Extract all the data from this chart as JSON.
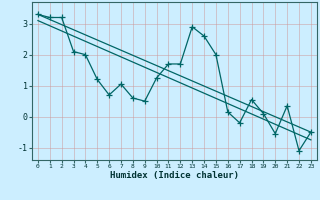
{
  "title": "",
  "xlabel": "Humidex (Indice chaleur)",
  "background_color": "#cceeff",
  "grid_color": "#aaddcc",
  "line_color": "#006666",
  "xlim": [
    -0.5,
    23.5
  ],
  "ylim": [
    -1.4,
    3.7
  ],
  "yticks": [
    -1,
    0,
    1,
    2,
    3
  ],
  "xticks": [
    0,
    1,
    2,
    3,
    4,
    5,
    6,
    7,
    8,
    9,
    10,
    11,
    12,
    13,
    14,
    15,
    16,
    17,
    18,
    19,
    20,
    21,
    22,
    23
  ],
  "series1_x": [
    0,
    1,
    2,
    3,
    4,
    5,
    6,
    7,
    8,
    9,
    10,
    11,
    12,
    13,
    14,
    15,
    16,
    17,
    18,
    19,
    20,
    21,
    22,
    23
  ],
  "series1_y": [
    3.3,
    3.2,
    3.2,
    2.1,
    2.0,
    1.2,
    0.7,
    1.05,
    0.6,
    0.5,
    1.25,
    1.7,
    1.7,
    2.9,
    2.6,
    2.0,
    0.15,
    -0.2,
    0.55,
    0.1,
    -0.55,
    0.35,
    -1.1,
    -0.5
  ],
  "line1_x": [
    0,
    23
  ],
  "line1_y": [
    3.3,
    -0.5
  ],
  "line2_x": [
    0,
    23
  ],
  "line2_y": [
    3.1,
    -0.75
  ],
  "marker": "+",
  "markersize": 4,
  "linewidth": 0.9,
  "xlabel_fontsize": 6.5,
  "xtick_fontsize": 4.5,
  "ytick_fontsize": 6.0
}
